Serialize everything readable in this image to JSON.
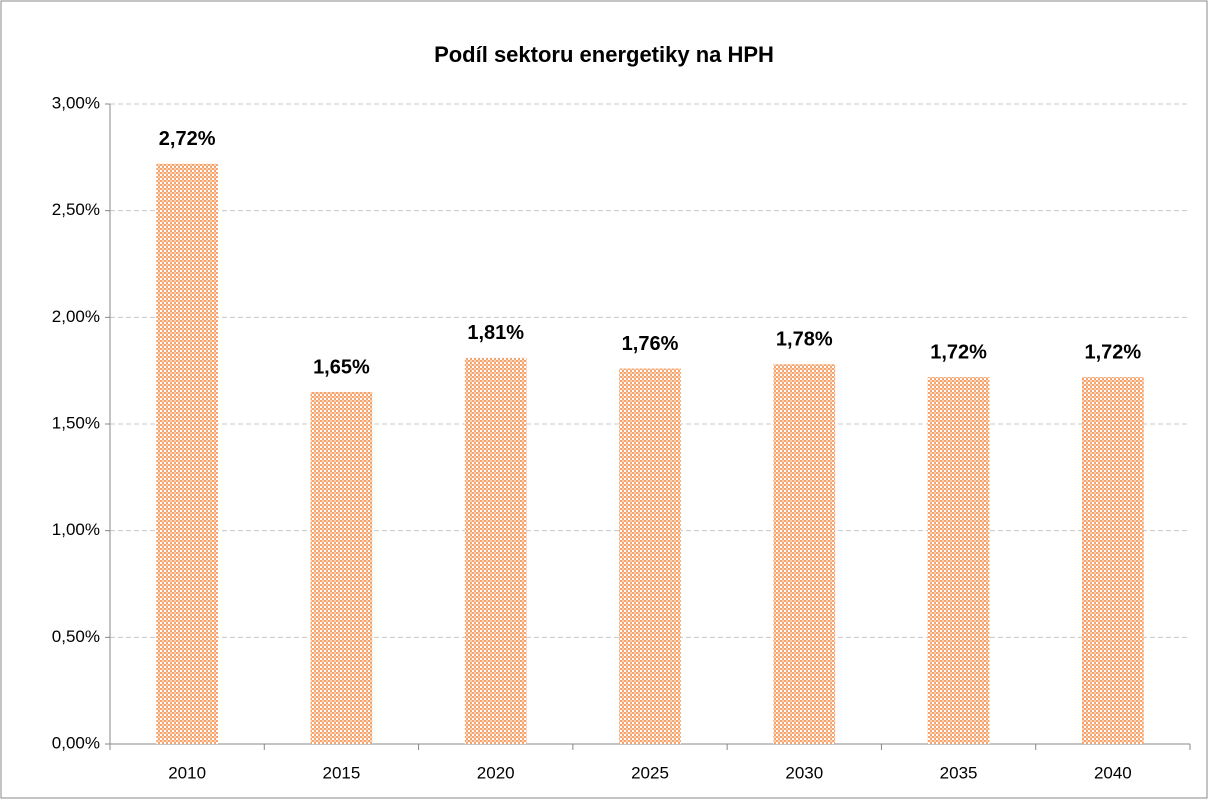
{
  "chart_data": {
    "type": "bar",
    "title": "Podíl sektoru energetiky na HPH",
    "categories": [
      "2010",
      "2015",
      "2020",
      "2025",
      "2030",
      "2035",
      "2040"
    ],
    "values": [
      2.72,
      1.65,
      1.81,
      1.76,
      1.78,
      1.72,
      1.72
    ],
    "value_labels": [
      "2,72%",
      "1,65%",
      "1,81%",
      "1,76%",
      "1,78%",
      "1,72%",
      "1,72%"
    ],
    "color": "#f4a46c",
    "ylim": [
      0,
      3
    ],
    "yticks": [
      {
        "value": 0,
        "label": "0,00%"
      },
      {
        "value": 0.5,
        "label": "0,50%"
      },
      {
        "value": 1,
        "label": "1,00%"
      },
      {
        "value": 1.5,
        "label": "1,50%"
      },
      {
        "value": 2,
        "label": "2,00%"
      },
      {
        "value": 2.5,
        "label": "2,50%"
      },
      {
        "value": 3,
        "label": "3,00%"
      }
    ],
    "grid": true
  }
}
